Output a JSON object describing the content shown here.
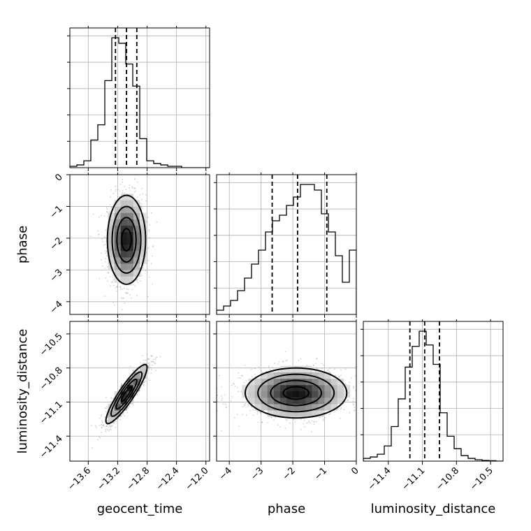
{
  "chart_data": {
    "type": "corner",
    "parameters": [
      {
        "name": "geocent_time",
        "label": "geocent_time",
        "range": [
          -13.85,
          -11.95
        ],
        "ticks": [
          -13.6,
          -13.2,
          -12.8,
          -12.4,
          -12.0
        ],
        "tick_labels": [
          "−13.6",
          "−13.2",
          "−12.8",
          "−12.4",
          "−12.0"
        ],
        "quantiles": [
          -13.23,
          -13.08,
          -12.94
        ],
        "hist_edges": [
          -13.85,
          -13.755,
          -13.66,
          -13.565,
          -13.47,
          -13.375,
          -13.28,
          -13.185,
          -13.09,
          -12.995,
          -12.9,
          -12.805,
          -12.71,
          -12.615,
          -12.52,
          -12.425,
          -12.33,
          -12.235,
          -12.14,
          -12.045,
          -11.95
        ],
        "hist_counts": [
          0.01,
          0.02,
          0.05,
          0.2,
          0.31,
          0.63,
          0.94,
          0.9,
          0.75,
          0.59,
          0.21,
          0.05,
          0.03,
          0.02,
          0.01,
          0.01,
          0,
          0,
          0,
          0
        ]
      },
      {
        "name": "phase",
        "label": "phase",
        "range": [
          -4.4,
          0.0
        ],
        "ticks": [
          -4,
          -3,
          -2,
          -1,
          0
        ],
        "tick_labels": [
          "−4",
          "−3",
          "−2",
          "−1",
          "0"
        ],
        "quantiles": [
          -2.65,
          -1.85,
          -0.93
        ],
        "hist_edges": [
          -4.4,
          -4.18,
          -3.96,
          -3.74,
          -3.52,
          -3.3,
          -3.08,
          -2.86,
          -2.64,
          -2.42,
          -2.2,
          -1.98,
          -1.76,
          -1.54,
          -1.32,
          -1.1,
          -0.88,
          -0.66,
          -0.44,
          -0.22,
          0.0
        ],
        "hist_counts": [
          0.03,
          0.06,
          0.1,
          0.17,
          0.26,
          0.36,
          0.46,
          0.59,
          0.67,
          0.71,
          0.78,
          0.84,
          0.93,
          0.93,
          0.89,
          0.72,
          0.59,
          0.42,
          0.23,
          0.46
        ]
      },
      {
        "name": "luminosity_distance",
        "label": "luminosity_distance",
        "range": [
          -11.62,
          -10.39
        ],
        "ticks": [
          -11.4,
          -11.1,
          -10.8,
          -10.5
        ],
        "tick_labels": [
          "−11.4",
          "−11.1",
          "−10.8",
          "−10.5"
        ],
        "quantiles": [
          -11.21,
          -11.08,
          -10.95
        ],
        "hist_edges": [
          -11.62,
          -11.5585,
          -11.497,
          -11.4355,
          -11.374,
          -11.3125,
          -11.251,
          -11.1895,
          -11.128,
          -11.0665,
          -11.005,
          -10.9435,
          -10.882,
          -10.8205,
          -10.759,
          -10.6975,
          -10.636,
          -10.5745,
          -10.513,
          -10.4515,
          -10.39
        ],
        "hist_counts": [
          0.02,
          0.03,
          0.05,
          0.11,
          0.25,
          0.45,
          0.68,
          0.83,
          0.94,
          0.84,
          0.7,
          0.35,
          0.18,
          0.09,
          0.04,
          0.02,
          0.01,
          0.005,
          0.003,
          0
        ]
      }
    ],
    "pairs": [
      {
        "x": "geocent_time",
        "y": "phase",
        "center": [
          -13.08,
          -2.05
        ],
        "sigma": [
          0.13,
          0.7
        ],
        "rho": 0,
        "truncate_y_above": -0.1
      },
      {
        "x": "geocent_time",
        "y": "luminosity_distance",
        "center": [
          -13.08,
          -11.03
        ],
        "sigma": [
          0.14,
          0.13
        ],
        "rho": 0.9
      },
      {
        "x": "phase",
        "y": "luminosity_distance",
        "center": [
          -1.9,
          -11.02
        ],
        "sigma": [
          0.8,
          0.11
        ],
        "rho": 0,
        "wrap_x": true
      }
    ],
    "grid": true,
    "contour_levels_sigma": [
      0.5,
      1.0,
      1.5,
      2.0
    ]
  }
}
